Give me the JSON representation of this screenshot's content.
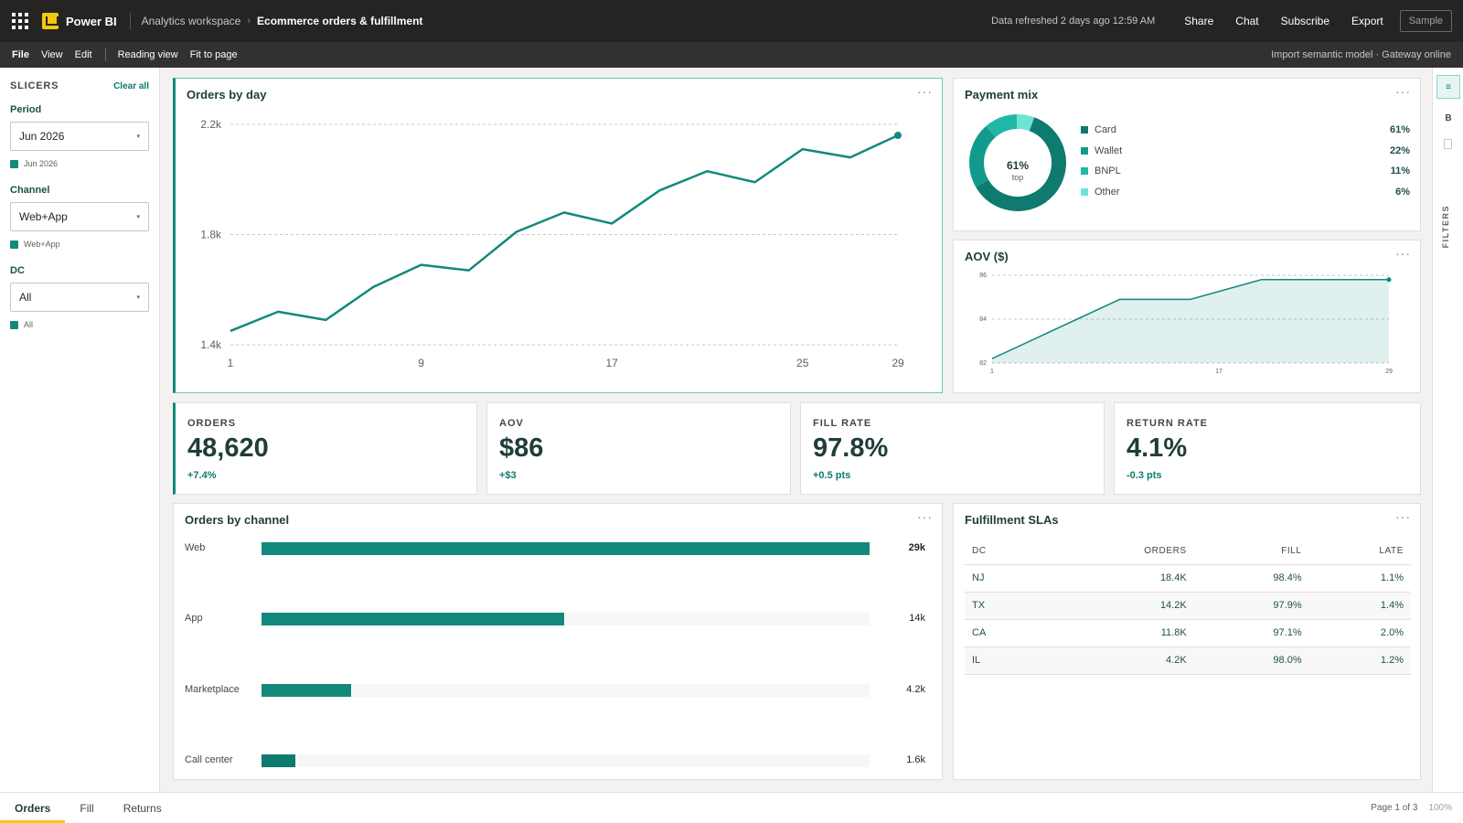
{
  "app": {
    "name": "Power BI"
  },
  "breadcrumb": {
    "workspace": "Analytics workspace",
    "report": "Ecommerce orders & fulfillment"
  },
  "topbar": {
    "refresh": "Data refreshed 2 days ago 12:59 AM",
    "share": "Share",
    "chat": "Chat",
    "subscribe": "Subscribe",
    "export": "Export",
    "sample": "Sample"
  },
  "menubar": {
    "items": [
      "File",
      "View",
      "Edit"
    ],
    "view_items": [
      "Reading view",
      "Fit to page"
    ],
    "status": "Import semantic model · Gateway online"
  },
  "slicers": {
    "title": "SLICERS",
    "clear_all": "Clear all",
    "items": [
      {
        "label": "Period",
        "value": "Jun 2026",
        "chip": "Jun 2026"
      },
      {
        "label": "Channel",
        "value": "Web+App",
        "chip": "Web+App"
      },
      {
        "label": "DC",
        "value": "All",
        "chip": "All"
      }
    ]
  },
  "right_pane": {
    "btn1": "≡",
    "btn2": "B",
    "filters": "FILTERS"
  },
  "orders_by_day": {
    "title": "Orders by day",
    "more": "···"
  },
  "payment_mix": {
    "title": "Payment mix",
    "more": "···",
    "center_value": "61%",
    "center_label": "top",
    "legend": [
      {
        "name": "Card",
        "value": "61%",
        "color": "#0f7a6e"
      },
      {
        "name": "Wallet",
        "value": "22%",
        "color": "#129b8c"
      },
      {
        "name": "BNPL",
        "value": "11%",
        "color": "#21b7a6"
      },
      {
        "name": "Other",
        "value": "6%",
        "color": "#6ee3d3"
      }
    ]
  },
  "aov_chart": {
    "title": "AOV ($)",
    "more": "···"
  },
  "kpis": [
    {
      "label": "ORDERS",
      "value": "48,620",
      "delta": "+7.4%"
    },
    {
      "label": "AOV",
      "value": "$86",
      "delta": "+$3"
    },
    {
      "label": "FILL RATE",
      "value": "97.8%",
      "delta": "+0.5 pts"
    },
    {
      "label": "RETURN RATE",
      "value": "4.1%",
      "delta": "-0.3 pts"
    }
  ],
  "channel": {
    "title": "Orders by channel",
    "more": "···",
    "rows": [
      {
        "label": "Web",
        "value_label": "29k",
        "fraction": 1.0,
        "bold": true
      },
      {
        "label": "App",
        "value_label": "14k",
        "fraction": 0.497
      },
      {
        "label": "Marketplace",
        "value_label": "4.2k",
        "fraction": 0.148
      },
      {
        "label": "Call center",
        "value_label": "1.6k",
        "fraction": 0.056
      }
    ]
  },
  "sla": {
    "title": "Fulfillment SLAs",
    "more": "···",
    "headers": [
      "DC",
      "ORDERS",
      "FILL",
      "LATE"
    ],
    "rows": [
      [
        "NJ",
        "18.4K",
        "98.4%",
        "1.1%"
      ],
      [
        "TX",
        "14.2K",
        "97.9%",
        "1.4%"
      ],
      [
        "CA",
        "11.8K",
        "97.1%",
        "2.0%"
      ],
      [
        "IL",
        "4.2K",
        "98.0%",
        "1.2%"
      ]
    ]
  },
  "pages": {
    "tabs": [
      "Orders",
      "Fill",
      "Returns"
    ],
    "indicator": "Page 1 of 3",
    "zoom": "100%"
  },
  "chart_data": [
    {
      "type": "line",
      "title": "Orders by day",
      "x": [
        1,
        3,
        5,
        7,
        9,
        11,
        13,
        15,
        17,
        19,
        21,
        23,
        25,
        27,
        29
      ],
      "series": [
        {
          "values": [
            1450,
            1520,
            1490,
            1610,
            1690,
            1670,
            1810,
            1880,
            1840,
            1960,
            2030,
            1990,
            2110,
            2080,
            2160
          ]
        }
      ],
      "ylim": [
        1400,
        2200
      ],
      "yticks": [
        "1.4k",
        "1.8k",
        "2.2k"
      ],
      "yticks_values": [
        1400,
        1800,
        2200
      ],
      "xticks": [
        1,
        9,
        17,
        25,
        29
      ],
      "xlim": [
        1,
        29
      ],
      "grid": true,
      "color": "#12897b"
    },
    {
      "type": "pie",
      "title": "Payment mix",
      "categories": [
        "Card",
        "Wallet",
        "BNPL",
        "Other"
      ],
      "values": [
        61,
        22,
        11,
        6
      ]
    },
    {
      "type": "area",
      "title": "AOV ($)",
      "x": [
        1,
        10,
        15,
        20,
        29
      ],
      "series": [
        {
          "values": [
            82.2,
            84.9,
            84.9,
            85.8,
            85.8
          ]
        }
      ],
      "ylim": [
        82,
        86
      ],
      "yticks": [
        82,
        84,
        86
      ],
      "xticks": [
        1,
        17,
        29
      ],
      "xlim": [
        1,
        29
      ],
      "grid": true,
      "color": "#12897b"
    },
    {
      "type": "bar",
      "title": "Orders by channel",
      "categories": [
        "Web",
        "App",
        "Marketplace",
        "Call center"
      ],
      "values": [
        29000,
        14000,
        4200,
        1600
      ]
    }
  ]
}
